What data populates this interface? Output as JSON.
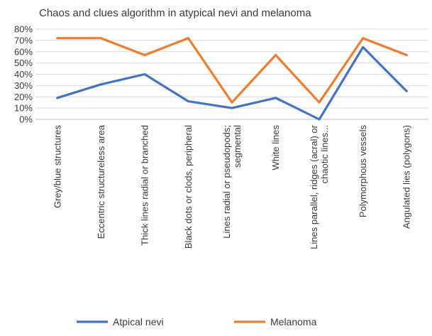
{
  "chart_data": {
    "type": "line",
    "title": "Chaos and clues algorithm in atypical nevi and melanoma",
    "categories": [
      "Grey/blue structures",
      "Eccentric structureless area",
      "Thick lines radial or branched",
      "Black dots or clods, peripheral",
      "Lines radial or pseudopods, segmental",
      "White lines",
      "Lines parallel, ridges (acral) or chaotic lines...",
      "Polymorphous vessels",
      "Angulated lies (polygons)"
    ],
    "category_display": [
      [
        "Grey/blue structures"
      ],
      [
        "Eccentric structureless area"
      ],
      [
        "Thick lines radial or branched"
      ],
      [
        "Black dots or clods, peripheral"
      ],
      [
        "Lines radial or pseudopods;",
        "segmental"
      ],
      [
        "White lines"
      ],
      [
        "Lines parallel, ridges (acral) or",
        "chaotic lines..."
      ],
      [
        "Polymorphous vessels"
      ],
      [
        "Angulated lies (polygons)"
      ]
    ],
    "series": [
      {
        "name": "Atpical nevi",
        "color": "#4472C4",
        "values": [
          19,
          31,
          40,
          16,
          10,
          19,
          0,
          64,
          25
        ]
      },
      {
        "name": "Melanoma",
        "color": "#ED7D31",
        "values": [
          72,
          72,
          57,
          72,
          15,
          57,
          15,
          72,
          57
        ]
      }
    ],
    "y_ticks": [
      "0%",
      "10%",
      "20%",
      "30%",
      "40%",
      "50%",
      "60%",
      "70%",
      "80%"
    ],
    "ylim": [
      0,
      80
    ],
    "grid": true,
    "legend_position": "bottom"
  }
}
